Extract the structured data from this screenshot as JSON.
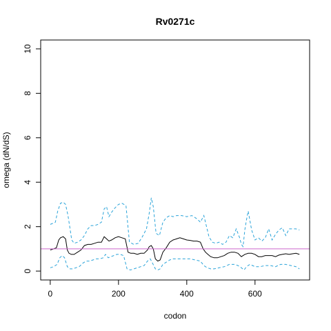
{
  "chart_data": {
    "type": "line",
    "title": "Rv0271c",
    "xlabel": "codon",
    "ylabel": "omega (dN/dS)",
    "xlim": [
      -28,
      760
    ],
    "ylim": [
      -0.4,
      10.4
    ],
    "x_ticks": [
      0,
      200,
      400,
      600
    ],
    "y_ticks": [
      0,
      2,
      4,
      6,
      8,
      10
    ],
    "reference_line": {
      "y": 1,
      "color": "#cc66cc"
    },
    "colors": {
      "mean": "#000000",
      "bounds": "#29a3d9",
      "reference": "#cc66cc"
    },
    "grid": false,
    "legend": "none",
    "series": [
      {
        "style": "dashed",
        "color": "#29a3d9",
        "x": [
          0,
          8,
          15,
          22,
          30,
          38,
          45,
          52,
          58,
          63,
          70,
          80,
          90,
          100,
          110,
          120,
          130,
          140,
          150,
          158,
          165,
          172,
          180,
          190,
          200,
          210,
          222,
          232,
          245,
          258,
          270,
          282,
          290,
          296,
          302,
          310,
          320,
          330,
          340,
          350,
          360,
          370,
          385,
          400,
          415,
          430,
          440,
          450,
          458,
          465,
          475,
          485,
          495,
          505,
          515,
          525,
          535,
          545,
          555,
          560,
          565,
          570,
          575,
          580,
          590,
          600,
          610,
          620,
          630,
          640,
          650,
          660,
          670,
          680,
          690,
          700,
          710,
          720,
          730
        ],
        "values": [
          2.1,
          2.15,
          2.2,
          2.7,
          3.05,
          3.1,
          3.0,
          2.5,
          1.9,
          1.4,
          1.25,
          1.3,
          1.4,
          1.6,
          1.9,
          2.05,
          2.05,
          2.1,
          2.2,
          2.8,
          2.9,
          2.45,
          2.65,
          2.85,
          3.0,
          3.05,
          2.95,
          1.3,
          1.2,
          1.25,
          1.55,
          1.9,
          2.6,
          3.3,
          2.9,
          1.7,
          1.6,
          2.2,
          2.4,
          2.5,
          2.45,
          2.5,
          2.5,
          2.45,
          2.5,
          2.35,
          2.2,
          2.5,
          2.0,
          1.55,
          1.3,
          1.25,
          1.3,
          1.2,
          1.3,
          1.6,
          1.5,
          1.9,
          1.5,
          1.2,
          1.1,
          1.85,
          2.3,
          2.7,
          1.85,
          1.4,
          1.5,
          1.35,
          1.5,
          1.9,
          1.4,
          1.65,
          1.85,
          1.95,
          1.6,
          1.9,
          1.9,
          1.9,
          1.85
        ]
      },
      {
        "style": "solid",
        "color": "#000000",
        "x": [
          0,
          10,
          18,
          25,
          30,
          38,
          45,
          50,
          55,
          62,
          70,
          80,
          90,
          100,
          110,
          120,
          130,
          140,
          150,
          158,
          165,
          172,
          180,
          190,
          200,
          210,
          220,
          228,
          236,
          245,
          255,
          265,
          275,
          285,
          290,
          296,
          302,
          308,
          315,
          322,
          330,
          340,
          350,
          360,
          370,
          380,
          390,
          400,
          410,
          420,
          430,
          440,
          448,
          455,
          462,
          470,
          480,
          490,
          500,
          510,
          520,
          530,
          540,
          550,
          560,
          570,
          580,
          590,
          600,
          610,
          620,
          630,
          640,
          650,
          660,
          670,
          680,
          690,
          700,
          710,
          720,
          730
        ],
        "values": [
          0.95,
          1.0,
          1.05,
          1.4,
          1.5,
          1.55,
          1.45,
          0.95,
          0.8,
          0.75,
          0.75,
          0.85,
          0.95,
          1.15,
          1.2,
          1.2,
          1.25,
          1.3,
          1.3,
          1.55,
          1.45,
          1.35,
          1.4,
          1.5,
          1.55,
          1.5,
          1.45,
          0.85,
          0.8,
          0.8,
          0.75,
          0.8,
          0.8,
          0.95,
          1.1,
          1.15,
          1.0,
          0.55,
          0.45,
          0.5,
          0.85,
          1.05,
          1.3,
          1.4,
          1.45,
          1.5,
          1.45,
          1.4,
          1.38,
          1.35,
          1.35,
          1.3,
          1.0,
          0.85,
          0.75,
          0.65,
          0.6,
          0.6,
          0.65,
          0.7,
          0.8,
          0.85,
          0.85,
          0.8,
          0.65,
          0.75,
          0.8,
          0.8,
          0.75,
          0.65,
          0.65,
          0.7,
          0.7,
          0.7,
          0.65,
          0.72,
          0.75,
          0.78,
          0.75,
          0.78,
          0.8,
          0.75
        ]
      },
      {
        "style": "dashed",
        "color": "#29a3d9",
        "x": [
          0,
          10,
          20,
          28,
          35,
          42,
          50,
          58,
          65,
          75,
          85,
          95,
          105,
          115,
          125,
          135,
          145,
          155,
          162,
          170,
          178,
          186,
          195,
          205,
          215,
          225,
          235,
          245,
          255,
          265,
          275,
          285,
          293,
          300,
          308,
          315,
          322,
          330,
          340,
          350,
          360,
          370,
          380,
          395,
          410,
          425,
          440,
          450,
          460,
          470,
          480,
          495,
          510,
          525,
          540,
          550,
          560,
          568,
          575,
          585,
          600,
          615,
          630,
          645,
          660,
          675,
          690,
          705,
          720,
          730
        ],
        "values": [
          0.15,
          0.2,
          0.3,
          0.6,
          0.7,
          0.6,
          0.2,
          0.1,
          0.1,
          0.15,
          0.2,
          0.35,
          0.45,
          0.45,
          0.5,
          0.55,
          0.55,
          0.6,
          0.75,
          0.6,
          0.65,
          0.7,
          0.75,
          0.75,
          0.7,
          0.1,
          0.05,
          0.1,
          0.15,
          0.2,
          0.25,
          0.45,
          0.55,
          0.35,
          0.1,
          0.05,
          0.1,
          0.3,
          0.4,
          0.5,
          0.55,
          0.55,
          0.55,
          0.55,
          0.55,
          0.5,
          0.45,
          0.25,
          0.15,
          0.1,
          0.1,
          0.15,
          0.2,
          0.3,
          0.3,
          0.25,
          0.15,
          0.05,
          0.2,
          0.3,
          0.2,
          0.2,
          0.25,
          0.25,
          0.2,
          0.3,
          0.3,
          0.25,
          0.2,
          0.1
        ]
      }
    ]
  }
}
